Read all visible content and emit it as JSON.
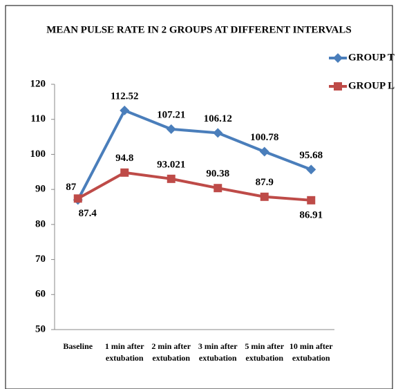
{
  "chart_data": {
    "type": "line",
    "title": "MEAN PULSE RATE IN 2 GROUPS AT DIFFERENT INTERVALS",
    "categories": [
      "Baseline",
      "1 min after extubation",
      "2 min after extubation",
      "3 min after extubation",
      "5 min after extubation",
      "10 min after extubation"
    ],
    "series": [
      {
        "name": "GROUP T",
        "color": "#4a7ebb",
        "values": [
          87,
          112.52,
          107.21,
          106.12,
          100.78,
          95.68
        ]
      },
      {
        "name": "GROUP L",
        "color": "#be4b48",
        "values": [
          87.4,
          94.8,
          93.021,
          90.38,
          87.9,
          86.91
        ]
      }
    ],
    "ylim": [
      50,
      120
    ],
    "yticks": [
      50,
      60,
      70,
      80,
      90,
      100,
      110,
      120
    ],
    "grid": false,
    "legend": "right"
  }
}
